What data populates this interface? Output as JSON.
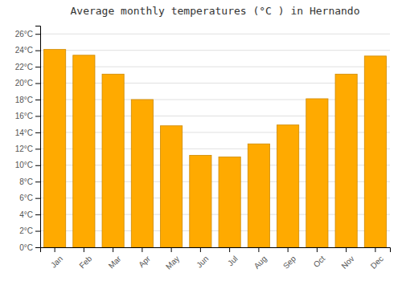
{
  "chart_data": {
    "type": "bar",
    "title": "Average monthly temperatures (°C ) in Hernando",
    "categories": [
      "Jan",
      "Feb",
      "Mar",
      "Apr",
      "May",
      "Jun",
      "Jul",
      "Aug",
      "Sep",
      "Oct",
      "Nov",
      "Dec"
    ],
    "values": [
      24.1,
      23.4,
      21.1,
      18.0,
      14.8,
      11.2,
      11.0,
      12.6,
      14.9,
      18.1,
      21.1,
      23.3
    ],
    "color": "#FFAA00",
    "ylim": [
      0,
      27
    ],
    "yticks": [
      {
        "value": 0,
        "label": "0°C"
      },
      {
        "value": 2,
        "label": "2°C"
      },
      {
        "value": 4,
        "label": "4°C"
      },
      {
        "value": 6,
        "label": "6°C"
      },
      {
        "value": 8,
        "label": "8°C"
      },
      {
        "value": 10,
        "label": "10°C"
      },
      {
        "value": 12,
        "label": "12°C"
      },
      {
        "value": 14,
        "label": "14°C"
      },
      {
        "value": 16,
        "label": "16°C"
      },
      {
        "value": 18,
        "label": "18°C"
      },
      {
        "value": 20,
        "label": "20°C"
      },
      {
        "value": 22,
        "label": "22°C"
      },
      {
        "value": 24,
        "label": "24°C"
      },
      {
        "value": 26,
        "label": "26°C"
      }
    ],
    "grid": true
  }
}
